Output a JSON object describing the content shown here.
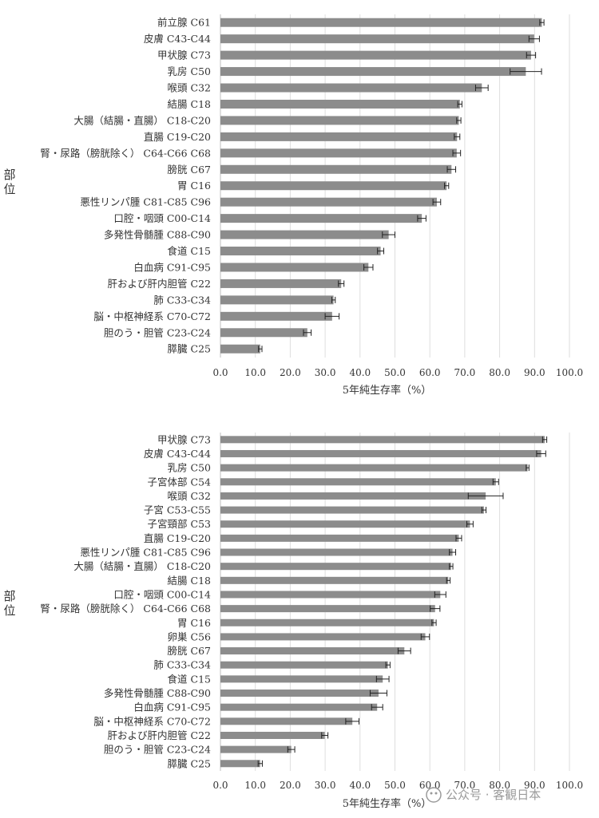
{
  "chart_data": [
    {
      "type": "bar",
      "orientation": "horizontal",
      "title": "",
      "xlabel": "5年純生存率（%）",
      "ylabel": "部位",
      "xlim": [
        0,
        100
      ],
      "xticks": [
        "0.0",
        "10.0",
        "20.0",
        "30.0",
        "40.0",
        "50.0",
        "60.0",
        "70.0",
        "80.0",
        "90.0",
        "100.0"
      ],
      "grid": "vertical",
      "error_bars": true,
      "bar_color": "#8c8c8c",
      "categories": [
        "前立腺 C61",
        "皮膚 C43-C44",
        "甲状腺 C73",
        "乳房 C50",
        "喉頭 C32",
        "結腸 C18",
        "大腸（結腸・直腸） C18-C20",
        "直腸 C19-C20",
        "腎・尿路（膀胱除く） C64-C66 C68",
        "膀胱 C67",
        "胃 C16",
        "悪性リンパ腫 C81-C85 C96",
        "口腔・咽頭 C00-C14",
        "多発性骨髄腫 C88-C90",
        "食道 C15",
        "白血病 C91-C95",
        "肝および肝内胆管 C22",
        "肺 C33-C34",
        "脳・中枢神経系 C70-C72",
        "胆のう・胆管 C23-C24",
        "膵臓 C25"
      ],
      "values": [
        92.1,
        89.9,
        89.0,
        87.5,
        74.9,
        68.6,
        68.3,
        67.8,
        67.7,
        66.2,
        64.8,
        62.0,
        57.7,
        48.2,
        45.9,
        42.4,
        34.6,
        32.4,
        32.0,
        24.9,
        11.4
      ],
      "err": [
        0.6,
        1.5,
        1.3,
        4.5,
        1.8,
        0.6,
        0.6,
        0.8,
        1.1,
        1.2,
        0.6,
        1.1,
        1.2,
        1.8,
        0.9,
        1.3,
        0.8,
        0.5,
        2.0,
        1.1,
        0.5
      ]
    },
    {
      "type": "bar",
      "orientation": "horizontal",
      "title": "",
      "xlabel": "5年純生存率（%）",
      "ylabel": "部位",
      "xlim": [
        0,
        100
      ],
      "xticks": [
        "0.0",
        "10.0",
        "20.0",
        "30.0",
        "40.0",
        "50.0",
        "60.0",
        "70.0",
        "80.0",
        "90.0",
        "100.0"
      ],
      "grid": "vertical",
      "error_bars": true,
      "bar_color": "#8c8c8c",
      "categories": [
        "甲状腺 C73",
        "皮膚 C43-C44",
        "乳房 C50",
        "子宮体部 C54",
        "喉頭 C32",
        "子宮 C53-C55",
        "子宮頸部 C53",
        "直腸 C19-C20",
        "悪性リンパ腫 C81-C85 C96",
        "大腸（結腸・直腸） C18-C20",
        "結腸 C18",
        "口腔・咽頭 C00-C14",
        "腎・尿路（膀胱除く） C64-C66 C68",
        "胃 C16",
        "卵巣 C56",
        "膀胱 C67",
        "肺 C33-C34",
        "食道 C15",
        "多発性骨髄腫 C88-C90",
        "白血病 C91-C95",
        "脳・中枢神経系 C70-C72",
        "肝および肝内胆管 C22",
        "胆のう・胆管 C23-C24",
        "膵臓 C25"
      ],
      "values": [
        92.9,
        91.9,
        88.0,
        78.9,
        76.0,
        75.5,
        71.5,
        68.3,
        66.5,
        66.1,
        65.3,
        63.0,
        61.5,
        61.2,
        58.7,
        52.7,
        48.0,
        46.5,
        45.3,
        44.9,
        37.8,
        29.9,
        20.3,
        11.4
      ],
      "err": [
        0.6,
        1.3,
        0.4,
        0.8,
        5.0,
        0.6,
        0.9,
        0.8,
        0.9,
        0.5,
        0.5,
        1.6,
        1.4,
        0.6,
        1.2,
        1.8,
        0.6,
        1.8,
        2.4,
        1.6,
        1.9,
        0.9,
        1.0,
        0.6
      ]
    }
  ],
  "watermark": "公众号 · 客観日本"
}
